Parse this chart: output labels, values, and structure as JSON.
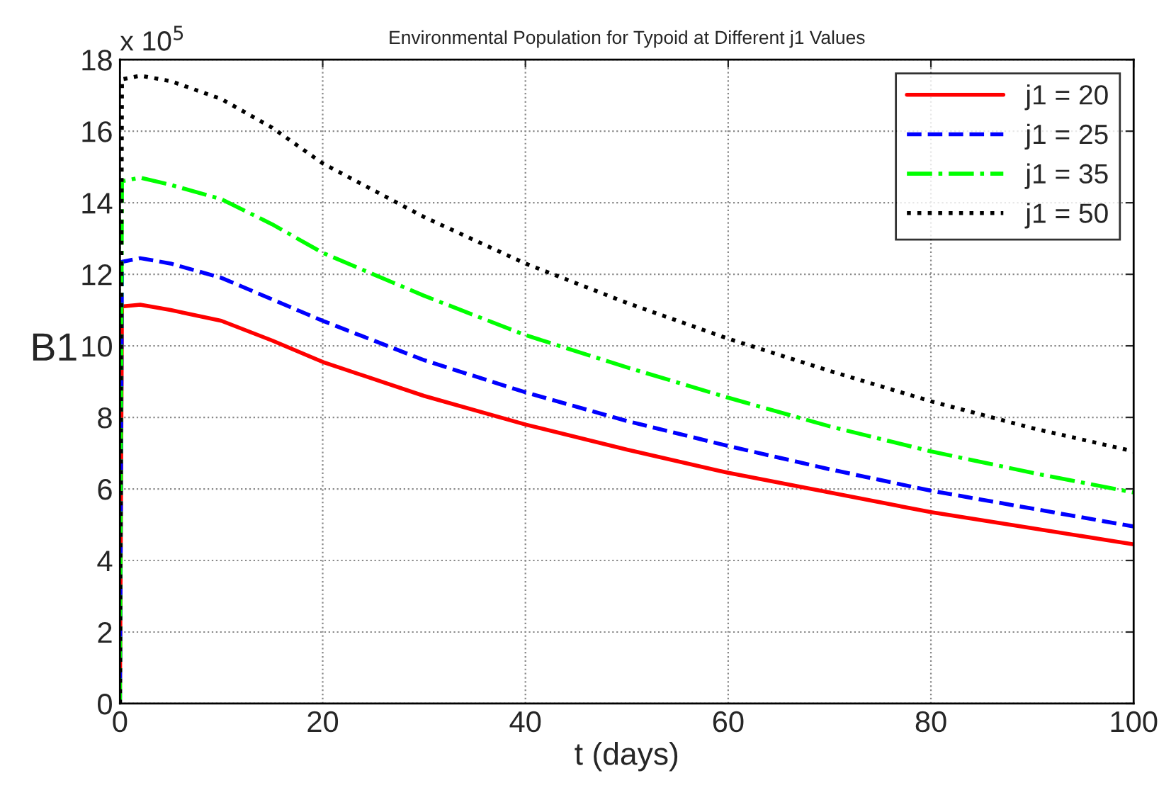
{
  "chart_data": {
    "type": "line",
    "title": "Environmental Population for Typoid at Different j1 Values",
    "xlabel": "t (days)",
    "ylabel": "B1",
    "annotations": [
      "x 10$^{5}$"
    ],
    "x": [
      0,
      0.2,
      2,
      5,
      10,
      15,
      20,
      30,
      40,
      50,
      60,
      70,
      80,
      90,
      100
    ],
    "series": [
      {
        "name": "j1 = 20",
        "color": "#ff0000",
        "line_style": "solid",
        "values": [
          0,
          11.1,
          11.15,
          11.0,
          10.7,
          10.15,
          9.55,
          8.6,
          7.8,
          7.1,
          6.45,
          5.9,
          5.35,
          4.9,
          4.45
        ]
      },
      {
        "name": "j1 = 25",
        "color": "#0000ff",
        "line_style": "dashed",
        "values": [
          0,
          12.35,
          12.45,
          12.3,
          11.9,
          11.3,
          10.7,
          9.6,
          8.7,
          7.9,
          7.2,
          6.55,
          5.95,
          5.45,
          4.95
        ]
      },
      {
        "name": "j1 = 35",
        "color": "#00ff00",
        "line_style": "dashdot",
        "values": [
          0,
          14.6,
          14.7,
          14.5,
          14.1,
          13.4,
          12.6,
          11.4,
          10.3,
          9.4,
          8.55,
          7.75,
          7.05,
          6.45,
          5.9
        ]
      },
      {
        "name": "j1 = 50",
        "color": "#000000",
        "line_style": "dotted",
        "values": [
          0,
          17.45,
          17.55,
          17.4,
          16.9,
          16.1,
          15.1,
          13.6,
          12.3,
          11.2,
          10.2,
          9.3,
          8.45,
          7.7,
          7.05
        ]
      }
    ],
    "xlim": [
      0,
      100
    ],
    "xticks": [
      0,
      20,
      40,
      60,
      80,
      100
    ],
    "ylim": [
      0,
      18
    ],
    "yticks": [
      0,
      2,
      4,
      6,
      8,
      10,
      12,
      14,
      16,
      18
    ],
    "grid": true,
    "legend": "top right",
    "marker": "none"
  }
}
